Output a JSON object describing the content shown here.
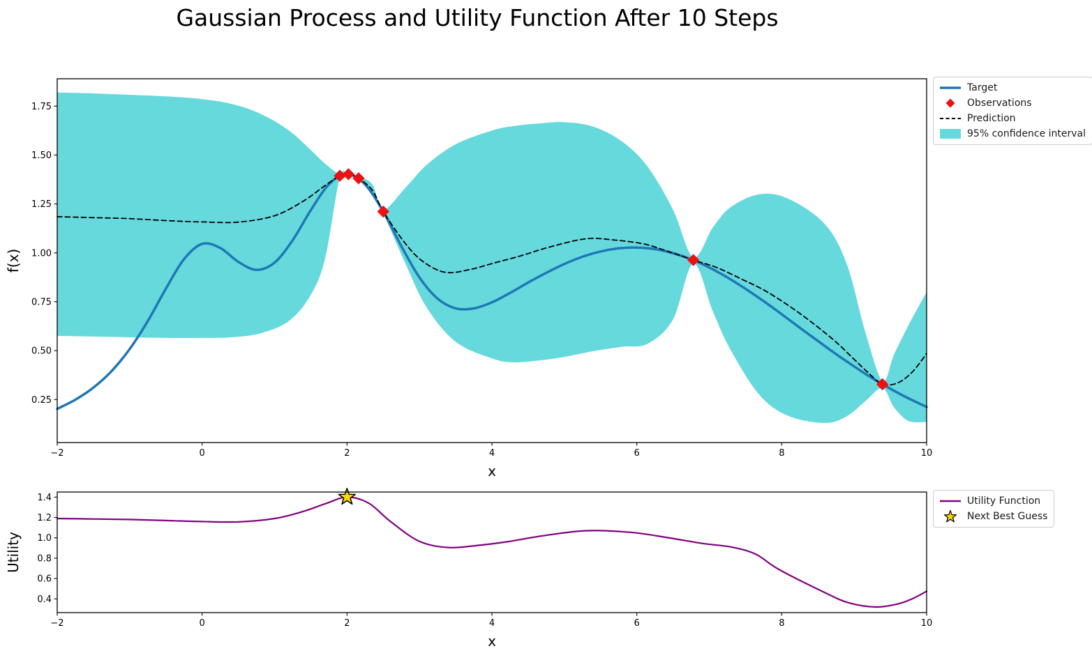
{
  "figure": {
    "title": "Gaussian Process and Utility Function After 10 Steps",
    "background": "#ffffff"
  },
  "colors": {
    "target": "#1f77b4",
    "observations": "#ee1111",
    "prediction": "#000000",
    "confidence_band": "#66d9dd",
    "utility": "#800080",
    "star_fill": "#ffd700",
    "star_edge": "#000000",
    "axis": "#000000",
    "legend_border": "#cccccc"
  },
  "chart_data": [
    {
      "id": "gp",
      "type": "line",
      "title": "",
      "xlabel": "x",
      "ylabel": "f(x)",
      "xlim": [
        -2,
        10
      ],
      "ylim": [
        0.03,
        1.89
      ],
      "grid": false,
      "legend_position": "outside upper right",
      "xticks": [
        -2,
        0,
        2,
        4,
        6,
        8,
        10
      ],
      "xtick_labels": [
        "−2",
        "0",
        "2",
        "4",
        "6",
        "8",
        "10"
      ],
      "yticks": [
        0.25,
        0.5,
        0.75,
        1.0,
        1.25,
        1.5,
        1.75
      ],
      "ytick_labels": [
        "0.25",
        "0.50",
        "0.75",
        "1.00",
        "1.25",
        "1.50",
        "1.75"
      ],
      "legend": [
        {
          "label": "Target",
          "glyph": "line",
          "color": "#1f77b4",
          "lw": 3.5,
          "icon": "target-line-icon"
        },
        {
          "label": "Observations",
          "glyph": "diamond",
          "color": "#ee1111",
          "icon": "observations-diamond-icon"
        },
        {
          "label": "Prediction",
          "glyph": "dashed",
          "color": "#000000",
          "icon": "prediction-dashed-line-icon"
        },
        {
          "label": "95% confidence interval",
          "glyph": "patch",
          "color": "#66d9dd",
          "icon": "confidence-interval-patch-icon"
        }
      ],
      "series": [
        {
          "name": "95% confidence interval",
          "type": "band",
          "color": "#66d9dd",
          "points_format": "[x, lower, upper]",
          "points": [
            [
              -2,
              0.575,
              1.82
            ],
            [
              -1.5,
              0.572,
              1.815
            ],
            [
              -1,
              0.568,
              1.808
            ],
            [
              -0.5,
              0.565,
              1.8
            ],
            [
              0,
              0.565,
              1.786
            ],
            [
              0.4,
              0.568,
              1.762
            ],
            [
              0.8,
              0.588,
              1.712
            ],
            [
              1.2,
              0.652,
              1.625
            ],
            [
              1.5,
              0.785,
              1.525
            ],
            [
              1.7,
              0.975,
              1.455
            ],
            [
              1.9,
              1.385,
              1.402
            ],
            [
              2.02,
              1.395,
              1.408
            ],
            [
              2.16,
              1.372,
              1.39
            ],
            [
              2.35,
              1.3,
              1.35
            ],
            [
              2.5,
              1.202,
              1.222
            ],
            [
              2.8,
              0.95,
              1.33
            ],
            [
              3.1,
              0.72,
              1.45
            ],
            [
              3.5,
              0.545,
              1.555
            ],
            [
              4,
              0.46,
              1.625
            ],
            [
              4.3,
              0.44,
              1.648
            ],
            [
              4.7,
              0.452,
              1.663
            ],
            [
              5,
              0.468,
              1.668
            ],
            [
              5.4,
              0.497,
              1.645
            ],
            [
              5.8,
              0.52,
              1.568
            ],
            [
              6.15,
              0.535,
              1.44
            ],
            [
              6.5,
              0.66,
              1.22
            ],
            [
              6.78,
              0.945,
              0.978
            ],
            [
              7.05,
              0.7,
              1.13
            ],
            [
              7.3,
              0.5,
              1.235
            ],
            [
              7.7,
              0.27,
              1.3
            ],
            [
              8.1,
              0.165,
              1.275
            ],
            [
              8.6,
              0.13,
              1.145
            ],
            [
              8.9,
              0.165,
              0.94
            ],
            [
              9.15,
              0.24,
              0.6
            ],
            [
              9.39,
              0.308,
              0.345
            ],
            [
              9.55,
              0.21,
              0.48
            ],
            [
              9.75,
              0.14,
              0.63
            ],
            [
              10,
              0.135,
              0.8
            ]
          ]
        },
        {
          "name": "Target",
          "type": "line",
          "color": "#1f77b4",
          "width": 3.5,
          "points": [
            [
              -2,
              0.202
            ],
            [
              -1.75,
              0.249
            ],
            [
              -1.5,
              0.311
            ],
            [
              -1.25,
              0.395
            ],
            [
              -1,
              0.508
            ],
            [
              -0.75,
              0.651
            ],
            [
              -0.5,
              0.817
            ],
            [
              -0.25,
              0.968
            ],
            [
              0,
              1.046
            ],
            [
              0.25,
              1.025
            ],
            [
              0.5,
              0.954
            ],
            [
              0.75,
              0.913
            ],
            [
              1,
              0.95
            ],
            [
              1.25,
              1.065
            ],
            [
              1.5,
              1.218
            ],
            [
              1.75,
              1.35
            ],
            [
              2,
              1.402
            ],
            [
              2.25,
              1.349
            ],
            [
              2.5,
              1.211
            ],
            [
              2.75,
              1.034
            ],
            [
              3,
              0.874
            ],
            [
              3.25,
              0.766
            ],
            [
              3.5,
              0.716
            ],
            [
              3.75,
              0.716
            ],
            [
              4,
              0.747
            ],
            [
              4.25,
              0.795
            ],
            [
              4.5,
              0.848
            ],
            [
              4.75,
              0.898
            ],
            [
              5,
              0.943
            ],
            [
              5.25,
              0.98
            ],
            [
              5.5,
              1.007
            ],
            [
              5.75,
              1.023
            ],
            [
              6,
              1.027
            ],
            [
              6.25,
              1.019
            ],
            [
              6.5,
              0.998
            ],
            [
              6.75,
              0.967
            ],
            [
              7,
              0.925
            ],
            [
              7.25,
              0.874
            ],
            [
              7.5,
              0.816
            ],
            [
              7.75,
              0.753
            ],
            [
              8,
              0.686
            ],
            [
              8.25,
              0.617
            ],
            [
              8.5,
              0.549
            ],
            [
              8.75,
              0.482
            ],
            [
              9,
              0.419
            ],
            [
              9.25,
              0.359
            ],
            [
              9.5,
              0.305
            ],
            [
              9.75,
              0.256
            ],
            [
              10,
              0.212
            ]
          ]
        },
        {
          "name": "Prediction",
          "type": "line",
          "color": "#000000",
          "width": 1.8,
          "dash": "7 4.5",
          "points": [
            [
              -2,
              1.185
            ],
            [
              -1.5,
              1.18
            ],
            [
              -1,
              1.175
            ],
            [
              -0.5,
              1.165
            ],
            [
              0,
              1.158
            ],
            [
              0.5,
              1.157
            ],
            [
              1,
              1.19
            ],
            [
              1.4,
              1.265
            ],
            [
              1.7,
              1.345
            ],
            [
              1.9,
              1.394
            ],
            [
              2.02,
              1.402
            ],
            [
              2.16,
              1.381
            ],
            [
              2.35,
              1.32
            ],
            [
              2.5,
              1.211
            ],
            [
              2.8,
              1.05
            ],
            [
              3.05,
              0.955
            ],
            [
              3.36,
              0.9
            ],
            [
              3.7,
              0.915
            ],
            [
              4,
              0.945
            ],
            [
              4.4,
              0.985
            ],
            [
              4.8,
              1.03
            ],
            [
              5.3,
              1.072
            ],
            [
              5.7,
              1.065
            ],
            [
              6.1,
              1.045
            ],
            [
              6.45,
              1.005
            ],
            [
              6.78,
              0.963
            ],
            [
              7.1,
              0.925
            ],
            [
              7.45,
              0.865
            ],
            [
              7.8,
              0.8
            ],
            [
              8.25,
              0.69
            ],
            [
              8.7,
              0.56
            ],
            [
              9,
              0.455
            ],
            [
              9.2,
              0.385
            ],
            [
              9.39,
              0.328
            ],
            [
              9.6,
              0.335
            ],
            [
              9.8,
              0.39
            ],
            [
              10,
              0.485
            ]
          ]
        },
        {
          "name": "Observations",
          "type": "scatter",
          "marker": "diamond",
          "color": "#ee1111",
          "points": [
            [
              1.9,
              1.394
            ],
            [
              2.02,
              1.402
            ],
            [
              2.16,
              1.381
            ],
            [
              2.5,
              1.211
            ],
            [
              6.78,
              0.963
            ],
            [
              9.39,
              0.328
            ]
          ]
        }
      ]
    },
    {
      "id": "utility",
      "type": "line",
      "title": "",
      "xlabel": "x",
      "ylabel": "Utility",
      "xlim": [
        -2,
        10
      ],
      "ylim": [
        0.265,
        1.45
      ],
      "grid": false,
      "legend_position": "outside upper right",
      "xticks": [
        -2,
        0,
        2,
        4,
        6,
        8,
        10
      ],
      "xtick_labels": [
        "−2",
        "0",
        "2",
        "4",
        "6",
        "8",
        "10"
      ],
      "yticks": [
        0.4,
        0.6,
        0.8,
        1.0,
        1.2,
        1.4
      ],
      "ytick_labels": [
        "0.4",
        "0.6",
        "0.8",
        "1.0",
        "1.2",
        "1.4"
      ],
      "legend": [
        {
          "label": "Utility Function",
          "glyph": "line",
          "color": "#800080",
          "lw": 2.5,
          "icon": "utility-line-icon"
        },
        {
          "label": "Next Best Guess",
          "glyph": "star",
          "color": "#ffd700",
          "icon": "next-best-guess-star-icon"
        }
      ],
      "series": [
        {
          "name": "Utility Function",
          "type": "line",
          "color": "#800080",
          "width": 2.2,
          "points": [
            [
              -2,
              1.19
            ],
            [
              -1.5,
              1.185
            ],
            [
              -1,
              1.18
            ],
            [
              -0.5,
              1.17
            ],
            [
              0,
              1.16
            ],
            [
              0.5,
              1.157
            ],
            [
              1,
              1.19
            ],
            [
              1.4,
              1.26
            ],
            [
              1.7,
              1.335
            ],
            [
              2,
              1.4
            ],
            [
              2.3,
              1.34
            ],
            [
              2.6,
              1.16
            ],
            [
              3,
              0.965
            ],
            [
              3.4,
              0.905
            ],
            [
              3.8,
              0.925
            ],
            [
              4.2,
              0.96
            ],
            [
              4.7,
              1.02
            ],
            [
              5.3,
              1.07
            ],
            [
              5.9,
              1.055
            ],
            [
              6.4,
              1.005
            ],
            [
              6.9,
              0.945
            ],
            [
              7.3,
              0.91
            ],
            [
              7.64,
              0.84
            ],
            [
              7.96,
              0.69
            ],
            [
              8.6,
              0.46
            ],
            [
              8.93,
              0.36
            ],
            [
              9.3,
              0.32
            ],
            [
              9.6,
              0.35
            ],
            [
              9.8,
              0.4
            ],
            [
              10,
              0.475
            ]
          ]
        },
        {
          "name": "Next Best Guess",
          "type": "scatter",
          "marker": "star",
          "color": "#ffd700",
          "edge": "#000000",
          "points": [
            [
              2.0,
              1.4
            ]
          ]
        }
      ]
    }
  ]
}
